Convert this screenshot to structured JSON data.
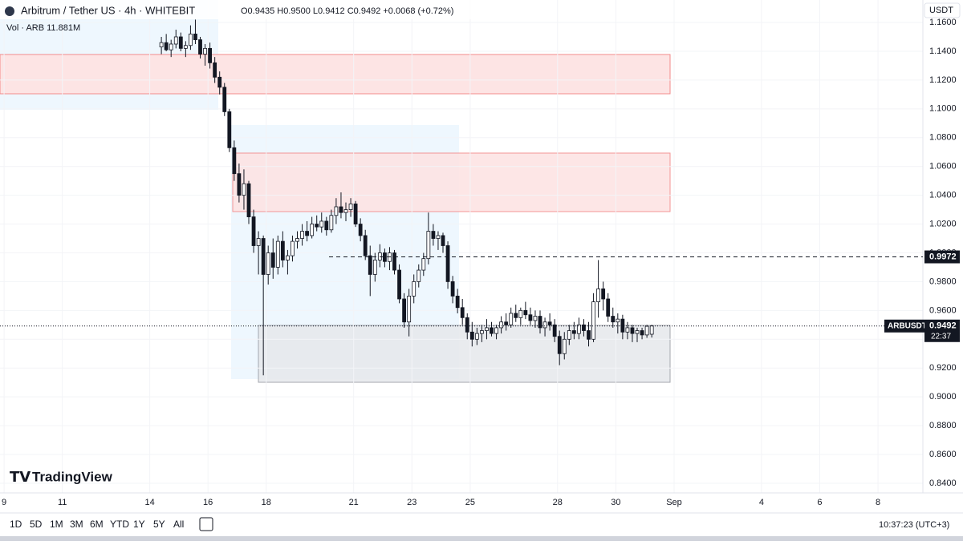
{
  "header": {
    "title": "Arbitrum / Tether US · 4h · WHITEBIT",
    "ohlc": "O0.9435 H0.9500 L0.9412 C0.9492 +0.0068 (+0.72%)",
    "volume": "Vol · ARB 11.881M"
  },
  "currency": "USDT",
  "logo": "TradingView",
  "toolbar": {
    "ranges": [
      "1D",
      "5D",
      "1M",
      "3M",
      "6M",
      "YTD",
      "1Y",
      "5Y",
      "All"
    ],
    "clock": "10:37:23 (UTC+3)"
  },
  "chart_data": {
    "type": "candlestick",
    "x_start": 14.4,
    "xlim": [
      8.86,
      40.54
    ],
    "ylim": [
      0.8333,
      1.1756
    ],
    "xticks": [
      9,
      11,
      14,
      16,
      18,
      21,
      23,
      25,
      28,
      30,
      {
        "value": 32,
        "label": "Sep"
      },
      {
        "value": 35,
        "label": "4"
      },
      {
        "value": 37,
        "label": "6"
      },
      {
        "value": 39,
        "label": "8"
      }
    ],
    "yticks": [
      {
        "value": 0.84,
        "label": "0.8400"
      },
      {
        "value": 0.86,
        "label": "0.8600"
      },
      {
        "value": 0.88,
        "label": "0.8800"
      },
      {
        "value": 0.9,
        "label": "0.9000"
      },
      {
        "value": 0.92,
        "label": "0.9200"
      },
      {
        "value": 0.94,
        "label": "0.9400"
      },
      {
        "value": 0.96,
        "label": "0.9600"
      },
      {
        "value": 0.98,
        "label": "0.9800"
      },
      {
        "value": 1.0,
        "label": "1.0000"
      },
      {
        "value": 1.02,
        "label": "1.0200"
      },
      {
        "value": 1.04,
        "label": "1.0400"
      },
      {
        "value": 1.06,
        "label": "1.0600"
      },
      {
        "value": 1.08,
        "label": "1.0800"
      },
      {
        "value": 1.1,
        "label": "1.1000"
      },
      {
        "value": 1.12,
        "label": "1.1200"
      },
      {
        "value": 1.14,
        "label": "1.1400"
      },
      {
        "value": 1.16,
        "label": "1.1600"
      }
    ],
    "level": {
      "value": 0.9972,
      "label": "0.9972"
    },
    "last": {
      "symbol": "ARBUSDT",
      "value": 0.9492,
      "label": "0.9492",
      "countdown": "22:37"
    },
    "candles": [
      [
        1.143,
        1.15,
        1.138,
        1.146
      ],
      [
        1.146,
        1.152,
        1.14,
        1.141
      ],
      [
        1.141,
        1.148,
        1.136,
        1.145
      ],
      [
        1.145,
        1.155,
        1.142,
        1.15
      ],
      [
        1.15,
        1.153,
        1.14,
        1.142
      ],
      [
        1.142,
        1.147,
        1.136,
        1.144
      ],
      [
        1.144,
        1.158,
        1.141,
        1.152
      ],
      [
        1.152,
        1.162,
        1.145,
        1.148
      ],
      [
        1.148,
        1.15,
        1.135,
        1.138
      ],
      [
        1.138,
        1.145,
        1.13,
        1.142
      ],
      [
        1.142,
        1.146,
        1.128,
        1.132
      ],
      [
        1.132,
        1.136,
        1.118,
        1.122
      ],
      [
        1.122,
        1.126,
        1.11,
        1.115
      ],
      [
        1.115,
        1.118,
        1.095,
        1.098
      ],
      [
        1.098,
        1.1,
        1.07,
        1.073
      ],
      [
        1.073,
        1.078,
        1.05,
        1.055
      ],
      [
        1.055,
        1.062,
        1.035,
        1.04
      ],
      [
        1.04,
        1.058,
        1.03,
        1.048
      ],
      [
        1.048,
        1.05,
        1.02,
        1.025
      ],
      [
        1.025,
        1.03,
        1.0,
        1.005
      ],
      [
        1.005,
        1.015,
        0.985,
        1.01
      ],
      [
        1.01,
        1.012,
        0.915,
        0.985
      ],
      [
        0.985,
        1.005,
        0.978,
        1.0
      ],
      [
        1.0,
        1.01,
        0.982,
        0.99
      ],
      [
        0.99,
        1.012,
        0.985,
        1.008
      ],
      [
        1.008,
        1.015,
        0.99,
        0.995
      ],
      [
        0.995,
        1.002,
        0.985,
        0.998
      ],
      [
        0.998,
        1.012,
        0.994,
        1.008
      ],
      [
        1.008,
        1.015,
        1.003,
        1.01
      ],
      [
        1.01,
        1.02,
        1.005,
        1.015
      ],
      [
        1.015,
        1.022,
        1.008,
        1.012
      ],
      [
        1.012,
        1.025,
        1.01,
        1.02
      ],
      [
        1.02,
        1.026,
        1.015,
        1.018
      ],
      [
        1.018,
        1.028,
        1.014,
        1.022
      ],
      [
        1.022,
        1.025,
        1.012,
        1.016
      ],
      [
        1.016,
        1.03,
        1.014,
        1.026
      ],
      [
        1.026,
        1.038,
        1.02,
        1.032
      ],
      [
        1.032,
        1.042,
        1.024,
        1.028
      ],
      [
        1.028,
        1.035,
        1.022,
        1.03
      ],
      [
        1.03,
        1.038,
        1.025,
        1.034
      ],
      [
        1.034,
        1.036,
        1.018,
        1.02
      ],
      [
        1.02,
        1.024,
        1.008,
        1.012
      ],
      [
        1.012,
        1.016,
        0.995,
        0.998
      ],
      [
        0.998,
        1.005,
        0.97,
        0.985
      ],
      [
        0.985,
        1.0,
        0.98,
        0.995
      ],
      [
        0.995,
        1.006,
        0.99,
        1.0
      ],
      [
        1.0,
        1.003,
        0.99,
        0.994
      ],
      [
        0.994,
        1.004,
        0.988,
        1.0
      ],
      [
        1.0,
        1.002,
        0.985,
        0.988
      ],
      [
        0.988,
        0.992,
        0.965,
        0.968
      ],
      [
        0.968,
        0.972,
        0.948,
        0.952
      ],
      [
        0.952,
        0.975,
        0.942,
        0.97
      ],
      [
        0.97,
        0.985,
        0.965,
        0.98
      ],
      [
        0.98,
        0.992,
        0.976,
        0.988
      ],
      [
        0.988,
        1.0,
        0.984,
        0.996
      ],
      [
        0.996,
        1.028,
        0.992,
        1.015
      ],
      [
        1.015,
        1.02,
        1.005,
        1.01
      ],
      [
        1.01,
        1.015,
        1.002,
        1.012
      ],
      [
        1.012,
        1.014,
        1.0,
        1.005
      ],
      [
        1.005,
        1.008,
        0.975,
        0.98
      ],
      [
        0.98,
        0.984,
        0.965,
        0.97
      ],
      [
        0.97,
        0.975,
        0.958,
        0.962
      ],
      [
        0.962,
        0.968,
        0.95,
        0.955
      ],
      [
        0.955,
        0.958,
        0.94,
        0.945
      ],
      [
        0.945,
        0.952,
        0.935,
        0.94
      ],
      [
        0.94,
        0.948,
        0.936,
        0.944
      ],
      [
        0.944,
        0.95,
        0.938,
        0.946
      ],
      [
        0.946,
        0.954,
        0.94,
        0.948
      ],
      [
        0.948,
        0.952,
        0.942,
        0.944
      ],
      [
        0.944,
        0.95,
        0.94,
        0.948
      ],
      [
        0.948,
        0.956,
        0.944,
        0.952
      ],
      [
        0.952,
        0.958,
        0.946,
        0.95
      ],
      [
        0.95,
        0.962,
        0.948,
        0.958
      ],
      [
        0.958,
        0.964,
        0.952,
        0.955
      ],
      [
        0.955,
        0.962,
        0.95,
        0.96
      ],
      [
        0.96,
        0.966,
        0.954,
        0.957
      ],
      [
        0.957,
        0.962,
        0.95,
        0.953
      ],
      [
        0.953,
        0.96,
        0.948,
        0.956
      ],
      [
        0.956,
        0.96,
        0.944,
        0.948
      ],
      [
        0.948,
        0.955,
        0.942,
        0.952
      ],
      [
        0.952,
        0.958,
        0.946,
        0.95
      ],
      [
        0.95,
        0.954,
        0.938,
        0.942
      ],
      [
        0.942,
        0.946,
        0.922,
        0.93
      ],
      [
        0.93,
        0.945,
        0.926,
        0.94
      ],
      [
        0.94,
        0.95,
        0.936,
        0.946
      ],
      [
        0.946,
        0.952,
        0.94,
        0.944
      ],
      [
        0.944,
        0.955,
        0.94,
        0.95
      ],
      [
        0.95,
        0.954,
        0.942,
        0.946
      ],
      [
        0.946,
        0.952,
        0.935,
        0.94
      ],
      [
        0.94,
        0.972,
        0.938,
        0.966
      ],
      [
        0.966,
        0.995,
        0.955,
        0.975
      ],
      [
        0.975,
        0.98,
        0.96,
        0.968
      ],
      [
        0.968,
        0.972,
        0.952,
        0.956
      ],
      [
        0.956,
        0.962,
        0.948,
        0.952
      ],
      [
        0.952,
        0.958,
        0.944,
        0.954
      ],
      [
        0.954,
        0.957,
        0.94,
        0.945
      ],
      [
        0.945,
        0.952,
        0.94,
        0.948
      ],
      [
        0.948,
        0.95,
        0.938,
        0.944
      ],
      [
        0.944,
        0.948,
        0.938,
        0.946
      ],
      [
        0.946,
        0.948,
        0.94,
        0.943
      ],
      [
        0.943,
        0.95,
        0.941,
        0.949
      ],
      [
        0.9435,
        0.95,
        0.9412,
        0.9492
      ]
    ]
  }
}
